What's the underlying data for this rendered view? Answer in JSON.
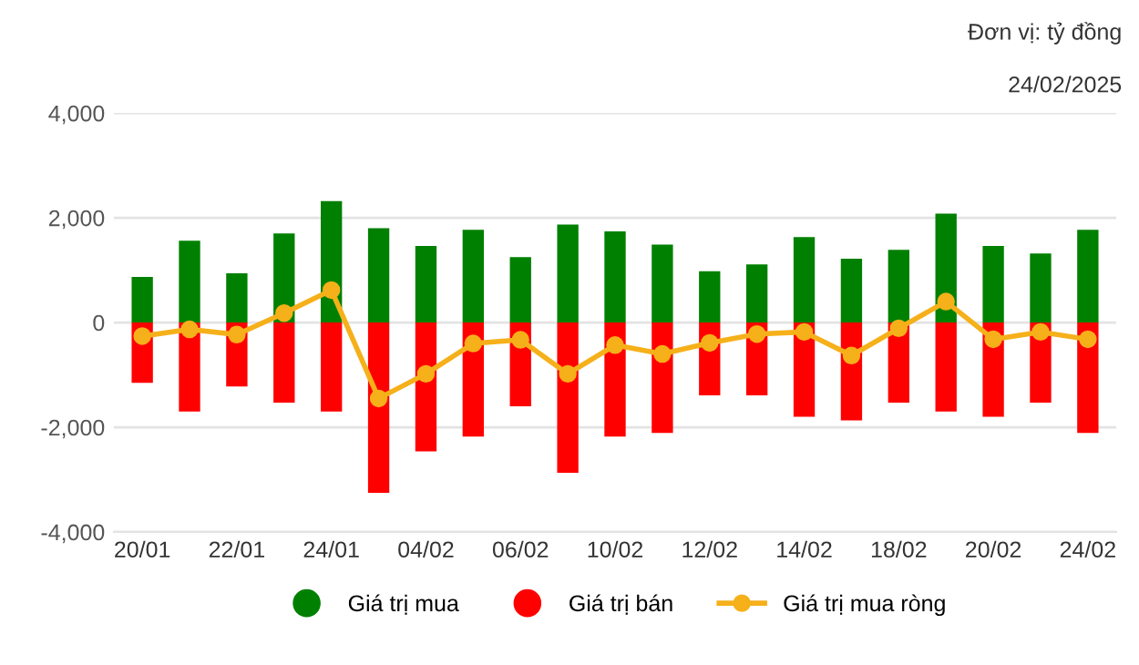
{
  "chart_data": {
    "type": "bar",
    "categories": [
      "20/01",
      null,
      "22/01",
      null,
      "24/01",
      null,
      "04/02",
      null,
      "06/02",
      null,
      "10/02",
      null,
      "12/02",
      null,
      "14/02",
      null,
      "18/02",
      null,
      "20/02",
      null,
      "24/02"
    ],
    "series": [
      {
        "name": "Giá trị mua",
        "color": "#008000",
        "values": [
          870,
          1560,
          940,
          1700,
          2320,
          1800,
          1460,
          1770,
          1250,
          1870,
          1740,
          1490,
          980,
          1110,
          1630,
          1220,
          1390,
          2080,
          1460,
          1320,
          1770
        ]
      },
      {
        "name": "Giá trị bán",
        "color": "#ff0000",
        "values": [
          -1150,
          -1700,
          -1220,
          -1530,
          -1700,
          -3250,
          -2460,
          -2180,
          -1600,
          -2870,
          -2180,
          -2110,
          -1390,
          -1390,
          -1800,
          -1870,
          -1530,
          -1700,
          -1800,
          -1530,
          -2110
        ]
      },
      {
        "name": "Giá trị mua ròng",
        "type": "line",
        "color": "#f5b01a",
        "marker": "circle",
        "values": [
          -260,
          -130,
          -230,
          180,
          620,
          -1450,
          -980,
          -400,
          -330,
          -980,
          -430,
          -600,
          -390,
          -220,
          -180,
          -630,
          -110,
          400,
          -320,
          -180,
          -320
        ]
      }
    ],
    "ylim": [
      -4000,
      4000
    ],
    "yticks": [
      {
        "value": -4000,
        "label": "-4,000"
      },
      {
        "value": -2000,
        "label": "-2,000"
      },
      0,
      {
        "value": 2000,
        "label": "2,000"
      },
      {
        "value": 4000,
        "label": "4,000"
      }
    ],
    "stacked": true,
    "grid": "y",
    "legend": "bottom",
    "annotations": [
      "Đơn vị: tỷ đồng",
      "24/02/2025"
    ]
  }
}
